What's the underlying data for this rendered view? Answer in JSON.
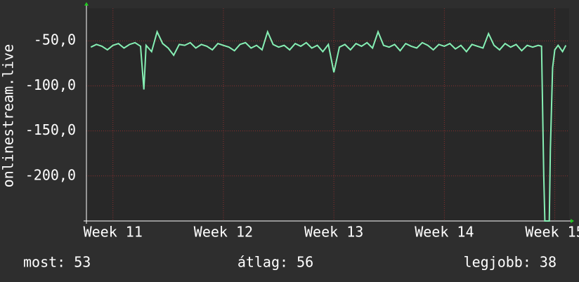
{
  "chart_data": {
    "type": "line",
    "ylabel": "onlinestream.live",
    "x": [
      10.8,
      10.85,
      10.9,
      10.95,
      11.0,
      11.05,
      11.1,
      11.15,
      11.2,
      11.25,
      11.28,
      11.3,
      11.35,
      11.4,
      11.45,
      11.5,
      11.55,
      11.6,
      11.65,
      11.7,
      11.75,
      11.8,
      11.85,
      11.9,
      11.95,
      12.0,
      12.05,
      12.1,
      12.15,
      12.2,
      12.25,
      12.3,
      12.35,
      12.4,
      12.45,
      12.5,
      12.55,
      12.6,
      12.65,
      12.7,
      12.75,
      12.8,
      12.85,
      12.9,
      12.95,
      13.0,
      13.05,
      13.1,
      13.15,
      13.2,
      13.25,
      13.3,
      13.35,
      13.4,
      13.45,
      13.5,
      13.55,
      13.6,
      13.65,
      13.7,
      13.75,
      13.8,
      13.85,
      13.9,
      13.95,
      14.0,
      14.05,
      14.1,
      14.15,
      14.2,
      14.25,
      14.3,
      14.35,
      14.4,
      14.45,
      14.5,
      14.55,
      14.6,
      14.65,
      14.7,
      14.75,
      14.8,
      14.85,
      14.88,
      14.9,
      14.91,
      14.95,
      14.96,
      14.98,
      15.0,
      15.03,
      15.07,
      15.1
    ],
    "series": [
      {
        "color": "#86efb4",
        "values": [
          -57,
          -54,
          -56,
          -60,
          -55,
          -53,
          -58,
          -54,
          -52,
          -56,
          -104,
          -55,
          -62,
          -40,
          -53,
          -58,
          -66,
          -54,
          -55,
          -52,
          -58,
          -54,
          -56,
          -60,
          -53,
          -55,
          -57,
          -61,
          -54,
          -52,
          -58,
          -55,
          -60,
          -40,
          -54,
          -57,
          -55,
          -60,
          -53,
          -56,
          -52,
          -58,
          -55,
          -62,
          -54,
          -85,
          -57,
          -54,
          -60,
          -53,
          -56,
          -52,
          -58,
          -40,
          -55,
          -57,
          -54,
          -61,
          -53,
          -56,
          -58,
          -52,
          -55,
          -60,
          -54,
          -56,
          -53,
          -59,
          -55,
          -62,
          -54,
          -56,
          -58,
          -42,
          -55,
          -60,
          -53,
          -57,
          -54,
          -61,
          -55,
          -57,
          -55,
          -56,
          -200,
          -250,
          -250,
          -170,
          -80,
          -60,
          -55,
          -62,
          -55
        ]
      }
    ],
    "xlim": [
      10.76,
      15.13
    ],
    "xticks": [
      {
        "value": 11,
        "label": "Week 11"
      },
      {
        "value": 12,
        "label": "Week 12"
      },
      {
        "value": 13,
        "label": "Week 13"
      },
      {
        "value": 14,
        "label": "Week 14"
      },
      {
        "value": 15,
        "label": "Week 15"
      }
    ],
    "ylim": [
      -250,
      -14
    ],
    "yticks": [
      {
        "value": -50,
        "label": "-50,0"
      },
      {
        "value": -100,
        "label": "-100,0"
      },
      {
        "value": -150,
        "label": "-150,0"
      },
      {
        "value": -200,
        "label": "-200,0"
      }
    ],
    "grid": true,
    "stats": [
      "most: 53",
      "átlag: 56",
      "legjobb: 38"
    ]
  }
}
